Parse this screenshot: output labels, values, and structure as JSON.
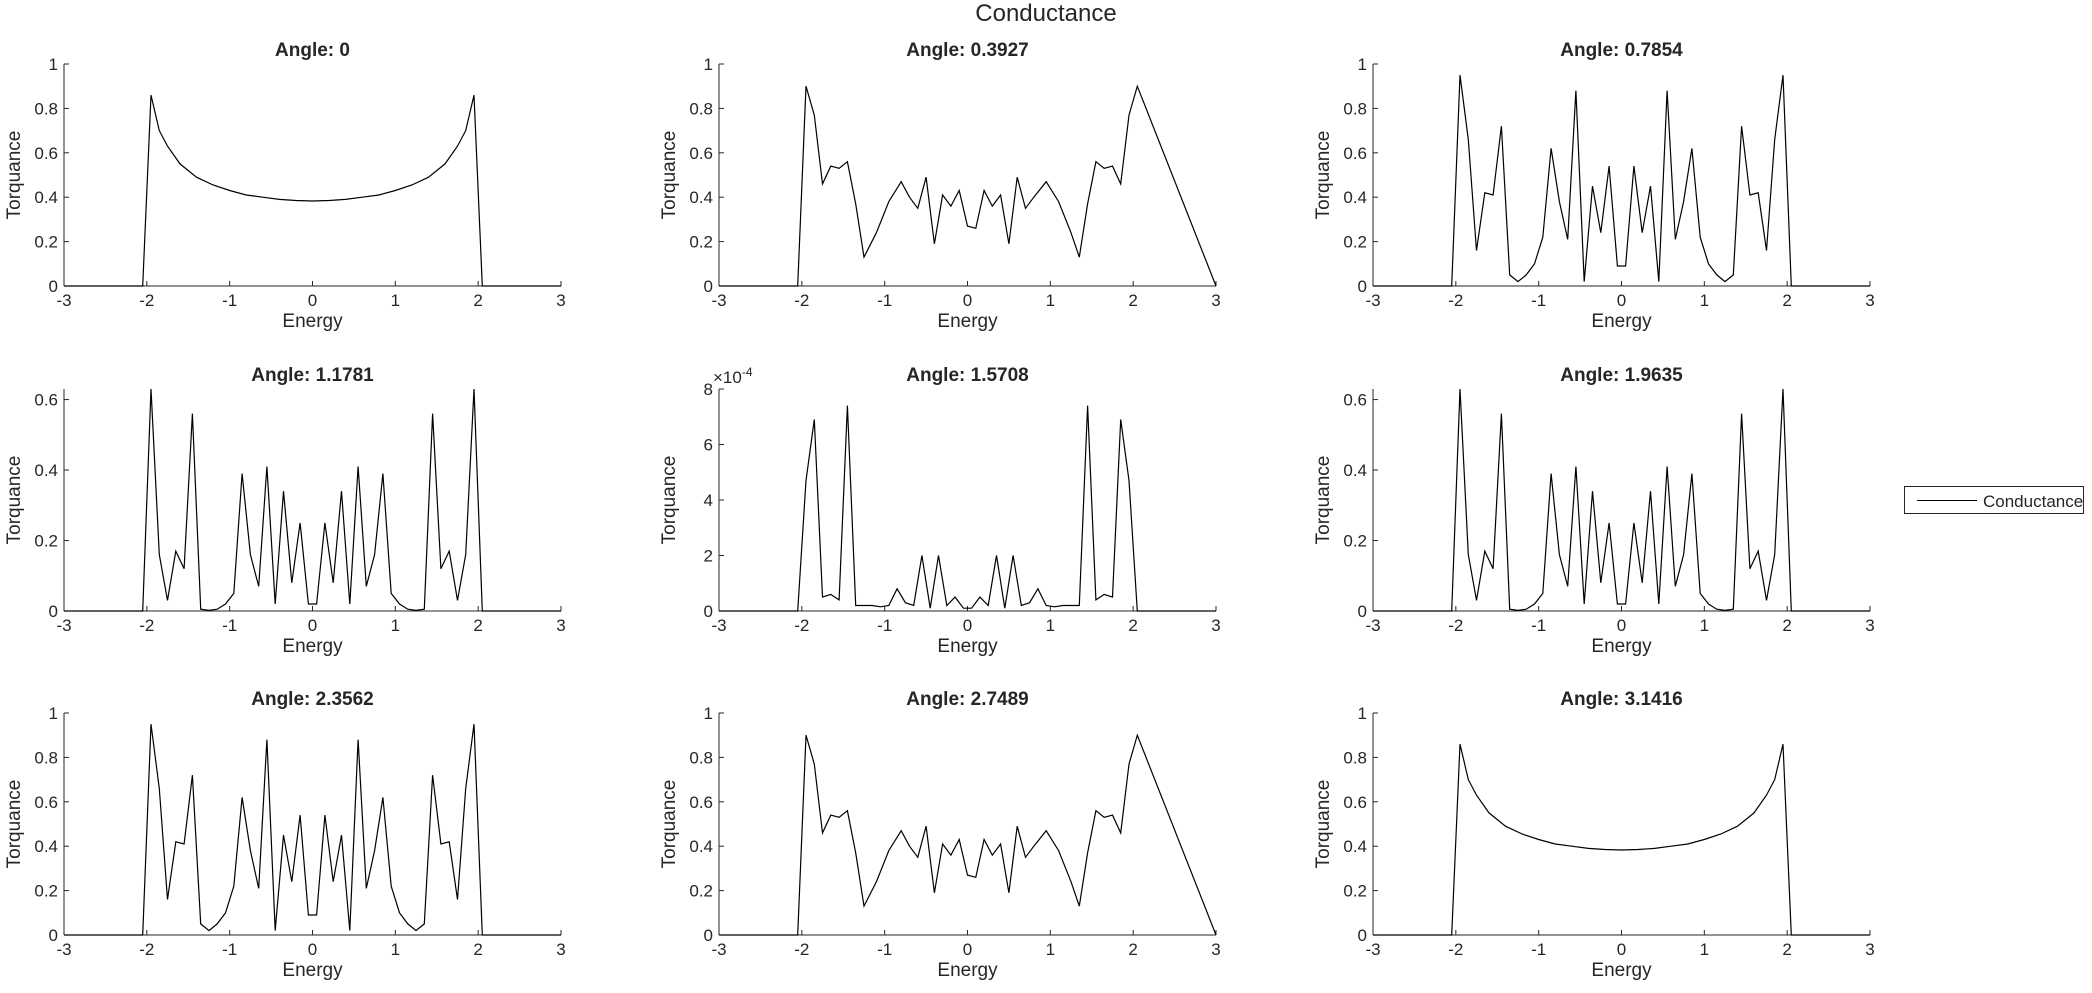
{
  "figure": {
    "title": "Conductance",
    "legend": {
      "entries": [
        "Conductance"
      ],
      "placement": "east-outside"
    },
    "line_color": "#000000"
  },
  "chart_data": [
    {
      "type": "line",
      "title": "Angle: 0",
      "xlabel": "Energy",
      "ylabel": "Torquance",
      "xlim": [
        -3,
        3
      ],
      "ylim": [
        0,
        1
      ],
      "xticks": [
        "-3",
        "-2",
        "-1",
        "0",
        "1",
        "2",
        "3"
      ],
      "yticks": [
        "0",
        "0.2",
        "0.4",
        "0.6",
        "0.8",
        "1"
      ],
      "series": [
        {
          "name": "Conductance",
          "x": [
            -3,
            -2.05,
            -1.95,
            -1.85,
            -1.75,
            -1.6,
            -1.4,
            -1.2,
            -1.0,
            -0.8,
            -0.6,
            -0.4,
            -0.2,
            0,
            0.2,
            0.4,
            0.6,
            0.8,
            1.0,
            1.2,
            1.4,
            1.6,
            1.75,
            1.85,
            1.95,
            2.05,
            3
          ],
          "y": [
            0,
            0,
            0.86,
            0.7,
            0.63,
            0.55,
            0.49,
            0.455,
            0.43,
            0.41,
            0.4,
            0.39,
            0.385,
            0.383,
            0.385,
            0.39,
            0.4,
            0.41,
            0.43,
            0.455,
            0.49,
            0.55,
            0.63,
            0.7,
            0.86,
            0,
            0
          ]
        }
      ]
    },
    {
      "type": "line",
      "title": "Angle: 0.3927",
      "xlabel": "Energy",
      "ylabel": "Torquance",
      "xlim": [
        -3,
        3
      ],
      "ylim": [
        0,
        1
      ],
      "xticks": [
        "-3",
        "-2",
        "-1",
        "0",
        "1",
        "2",
        "3"
      ],
      "yticks": [
        "0",
        "0.2",
        "0.4",
        "0.6",
        "0.8",
        "1"
      ],
      "series": [
        {
          "name": "Conductance",
          "x": [
            -3,
            -2.05,
            -1.95,
            -1.85,
            -1.75,
            -1.65,
            -1.55,
            -1.45,
            -1.35,
            -1.25,
            -1.1,
            -0.95,
            -0.8,
            -0.7,
            -0.6,
            -0.5,
            -0.4,
            -0.3,
            -0.2,
            -0.1,
            0,
            0.1,
            0.2,
            0.3,
            0.4,
            0.5,
            0.6,
            0.7,
            0.8,
            0.95,
            1.1,
            1.25,
            1.35,
            1.45,
            1.55,
            1.65,
            1.75,
            1.85,
            1.95,
            2.05,
            3
          ],
          "y": [
            0,
            0,
            0.9,
            0.77,
            0.46,
            0.54,
            0.53,
            0.56,
            0.37,
            0.13,
            0.24,
            0.38,
            0.47,
            0.4,
            0.35,
            0.49,
            0.19,
            0.41,
            0.36,
            0.43,
            0.27,
            0.26,
            0.43,
            0.36,
            0.41,
            0.19,
            0.49,
            0.35,
            0.4,
            0.47,
            0.38,
            0.24,
            0.13,
            0.37,
            0.56,
            0.53,
            0.54,
            0.46,
            0.77,
            0.9,
            0
          ]
        }
      ]
    },
    {
      "type": "line",
      "title": "Angle: 0.7854",
      "xlabel": "Energy",
      "ylabel": "Torquance",
      "xlim": [
        -3,
        3
      ],
      "ylim": [
        0,
        1
      ],
      "xticks": [
        "-3",
        "-2",
        "-1",
        "0",
        "1",
        "2",
        "3"
      ],
      "yticks": [
        "0",
        "0.2",
        "0.4",
        "0.6",
        "0.8",
        "1"
      ],
      "series": [
        {
          "name": "Conductance",
          "x": [
            -3,
            -2.05,
            -1.95,
            -1.85,
            -1.75,
            -1.65,
            -1.55,
            -1.45,
            -1.35,
            -1.25,
            -1.15,
            -1.05,
            -0.95,
            -0.85,
            -0.75,
            -0.65,
            -0.55,
            -0.45,
            -0.35,
            -0.25,
            -0.15,
            -0.05,
            0.05,
            0.15,
            0.25,
            0.35,
            0.45,
            0.55,
            0.65,
            0.75,
            0.85,
            0.95,
            1.05,
            1.15,
            1.25,
            1.35,
            1.45,
            1.55,
            1.65,
            1.75,
            1.85,
            1.95,
            2.05,
            3
          ],
          "y": [
            0,
            0,
            0.95,
            0.66,
            0.16,
            0.42,
            0.41,
            0.72,
            0.05,
            0.02,
            0.05,
            0.1,
            0.22,
            0.62,
            0.38,
            0.21,
            0.88,
            0.02,
            0.45,
            0.24,
            0.54,
            0.09,
            0.09,
            0.54,
            0.24,
            0.45,
            0.02,
            0.88,
            0.21,
            0.38,
            0.62,
            0.22,
            0.1,
            0.05,
            0.02,
            0.05,
            0.72,
            0.41,
            0.42,
            0.16,
            0.66,
            0.95,
            0,
            0
          ]
        }
      ]
    },
    {
      "type": "line",
      "title": "Angle: 1.1781",
      "xlabel": "Energy",
      "ylabel": "Torquance",
      "xlim": [
        -3,
        3
      ],
      "ylim": [
        0,
        0.63
      ],
      "xticks": [
        "-3",
        "-2",
        "-1",
        "0",
        "1",
        "2",
        "3"
      ],
      "yticks": [
        "0",
        "0.2",
        "0.4",
        "0.6"
      ],
      "series": [
        {
          "name": "Conductance",
          "x": [
            -3,
            -2.05,
            -1.95,
            -1.85,
            -1.75,
            -1.65,
            -1.55,
            -1.45,
            -1.35,
            -1.25,
            -1.15,
            -1.05,
            -0.95,
            -0.85,
            -0.75,
            -0.65,
            -0.55,
            -0.45,
            -0.35,
            -0.25,
            -0.15,
            -0.05,
            0.05,
            0.15,
            0.25,
            0.35,
            0.45,
            0.55,
            0.65,
            0.75,
            0.85,
            0.95,
            1.05,
            1.15,
            1.25,
            1.35,
            1.45,
            1.55,
            1.65,
            1.75,
            1.85,
            1.95,
            2.05,
            3
          ],
          "y": [
            0,
            0,
            0.63,
            0.16,
            0.03,
            0.17,
            0.12,
            0.56,
            0.005,
            0.002,
            0.005,
            0.02,
            0.05,
            0.39,
            0.16,
            0.07,
            0.41,
            0.02,
            0.34,
            0.08,
            0.25,
            0.02,
            0.02,
            0.25,
            0.08,
            0.34,
            0.02,
            0.41,
            0.07,
            0.16,
            0.39,
            0.05,
            0.02,
            0.005,
            0.002,
            0.005,
            0.56,
            0.12,
            0.17,
            0.03,
            0.16,
            0.63,
            0,
            0
          ]
        }
      ]
    },
    {
      "type": "line",
      "title": "Angle: 1.5708",
      "xlabel": "Energy",
      "ylabel": "Torquance",
      "xlim": [
        -3,
        3
      ],
      "ylim": [
        0,
        8
      ],
      "xticks": [
        "-3",
        "-2",
        "-1",
        "0",
        "1",
        "2",
        "3"
      ],
      "yticks": [
        "0",
        "2",
        "4",
        "6",
        "8"
      ],
      "yexponent": "×10^{-4}",
      "yexponent_base": "×10",
      "yexponent_power": "-4",
      "series": [
        {
          "name": "Conductance",
          "x": [
            -3,
            -2.05,
            -1.95,
            -1.85,
            -1.75,
            -1.65,
            -1.55,
            -1.45,
            -1.35,
            -1.25,
            -1.15,
            -1.05,
            -0.95,
            -0.85,
            -0.75,
            -0.65,
            -0.55,
            -0.45,
            -0.35,
            -0.25,
            -0.15,
            -0.05,
            0.05,
            0.15,
            0.25,
            0.35,
            0.45,
            0.55,
            0.65,
            0.75,
            0.85,
            0.95,
            1.05,
            1.15,
            1.25,
            1.35,
            1.45,
            1.55,
            1.65,
            1.75,
            1.85,
            1.95,
            2.05,
            3
          ],
          "y": [
            0,
            0,
            4.7,
            6.9,
            0.5,
            0.6,
            0.4,
            7.4,
            0.2,
            0.2,
            0.2,
            0.15,
            0.2,
            0.8,
            0.3,
            0.2,
            2.0,
            0.1,
            2.0,
            0.2,
            0.5,
            0.1,
            0.1,
            0.5,
            0.2,
            2.0,
            0.1,
            2.0,
            0.2,
            0.3,
            0.8,
            0.2,
            0.15,
            0.2,
            0.2,
            0.2,
            7.4,
            0.4,
            0.6,
            0.5,
            6.9,
            4.7,
            0,
            0
          ]
        }
      ]
    },
    {
      "type": "line",
      "title": "Angle: 1.9635",
      "xlabel": "Energy",
      "ylabel": "Torquance",
      "xlim": [
        -3,
        3
      ],
      "ylim": [
        0,
        0.63
      ],
      "xticks": [
        "-3",
        "-2",
        "-1",
        "0",
        "1",
        "2",
        "3"
      ],
      "yticks": [
        "0",
        "0.2",
        "0.4",
        "0.6"
      ],
      "series": [
        {
          "name": "Conductance",
          "x": [
            -3,
            -2.05,
            -1.95,
            -1.85,
            -1.75,
            -1.65,
            -1.55,
            -1.45,
            -1.35,
            -1.25,
            -1.15,
            -1.05,
            -0.95,
            -0.85,
            -0.75,
            -0.65,
            -0.55,
            -0.45,
            -0.35,
            -0.25,
            -0.15,
            -0.05,
            0.05,
            0.15,
            0.25,
            0.35,
            0.45,
            0.55,
            0.65,
            0.75,
            0.85,
            0.95,
            1.05,
            1.15,
            1.25,
            1.35,
            1.45,
            1.55,
            1.65,
            1.75,
            1.85,
            1.95,
            2.05,
            3
          ],
          "y": [
            0,
            0,
            0.63,
            0.16,
            0.03,
            0.17,
            0.12,
            0.56,
            0.005,
            0.002,
            0.005,
            0.02,
            0.05,
            0.39,
            0.16,
            0.07,
            0.41,
            0.02,
            0.34,
            0.08,
            0.25,
            0.02,
            0.02,
            0.25,
            0.08,
            0.34,
            0.02,
            0.41,
            0.07,
            0.16,
            0.39,
            0.05,
            0.02,
            0.005,
            0.002,
            0.005,
            0.56,
            0.12,
            0.17,
            0.03,
            0.16,
            0.63,
            0,
            0
          ]
        }
      ]
    },
    {
      "type": "line",
      "title": "Angle: 2.3562",
      "xlabel": "Energy",
      "ylabel": "Torquance",
      "xlim": [
        -3,
        3
      ],
      "ylim": [
        0,
        1
      ],
      "xticks": [
        "-3",
        "-2",
        "-1",
        "0",
        "1",
        "2",
        "3"
      ],
      "yticks": [
        "0",
        "0.2",
        "0.4",
        "0.6",
        "0.8",
        "1"
      ],
      "series": [
        {
          "name": "Conductance",
          "x": [
            -3,
            -2.05,
            -1.95,
            -1.85,
            -1.75,
            -1.65,
            -1.55,
            -1.45,
            -1.35,
            -1.25,
            -1.15,
            -1.05,
            -0.95,
            -0.85,
            -0.75,
            -0.65,
            -0.55,
            -0.45,
            -0.35,
            -0.25,
            -0.15,
            -0.05,
            0.05,
            0.15,
            0.25,
            0.35,
            0.45,
            0.55,
            0.65,
            0.75,
            0.85,
            0.95,
            1.05,
            1.15,
            1.25,
            1.35,
            1.45,
            1.55,
            1.65,
            1.75,
            1.85,
            1.95,
            2.05,
            3
          ],
          "y": [
            0,
            0,
            0.95,
            0.66,
            0.16,
            0.42,
            0.41,
            0.72,
            0.05,
            0.02,
            0.05,
            0.1,
            0.22,
            0.62,
            0.38,
            0.21,
            0.88,
            0.02,
            0.45,
            0.24,
            0.54,
            0.09,
            0.09,
            0.54,
            0.24,
            0.45,
            0.02,
            0.88,
            0.21,
            0.38,
            0.62,
            0.22,
            0.1,
            0.05,
            0.02,
            0.05,
            0.72,
            0.41,
            0.42,
            0.16,
            0.66,
            0.95,
            0,
            0
          ]
        }
      ]
    },
    {
      "type": "line",
      "title": "Angle: 2.7489",
      "xlabel": "Energy",
      "ylabel": "Torquance",
      "xlim": [
        -3,
        3
      ],
      "ylim": [
        0,
        1
      ],
      "xticks": [
        "-3",
        "-2",
        "-1",
        "0",
        "1",
        "2",
        "3"
      ],
      "yticks": [
        "0",
        "0.2",
        "0.4",
        "0.6",
        "0.8",
        "1"
      ],
      "series": [
        {
          "name": "Conductance",
          "x": [
            -3,
            -2.05,
            -1.95,
            -1.85,
            -1.75,
            -1.65,
            -1.55,
            -1.45,
            -1.35,
            -1.25,
            -1.1,
            -0.95,
            -0.8,
            -0.7,
            -0.6,
            -0.5,
            -0.4,
            -0.3,
            -0.2,
            -0.1,
            0,
            0.1,
            0.2,
            0.3,
            0.4,
            0.5,
            0.6,
            0.7,
            0.8,
            0.95,
            1.1,
            1.25,
            1.35,
            1.45,
            1.55,
            1.65,
            1.75,
            1.85,
            1.95,
            2.05,
            3
          ],
          "y": [
            0,
            0,
            0.9,
            0.77,
            0.46,
            0.54,
            0.53,
            0.56,
            0.37,
            0.13,
            0.24,
            0.38,
            0.47,
            0.4,
            0.35,
            0.49,
            0.19,
            0.41,
            0.36,
            0.43,
            0.27,
            0.26,
            0.43,
            0.36,
            0.41,
            0.19,
            0.49,
            0.35,
            0.4,
            0.47,
            0.38,
            0.24,
            0.13,
            0.37,
            0.56,
            0.53,
            0.54,
            0.46,
            0.77,
            0.9,
            0
          ]
        }
      ]
    },
    {
      "type": "line",
      "title": "Angle: 3.1416",
      "xlabel": "Energy",
      "ylabel": "Torquance",
      "xlim": [
        -3,
        3
      ],
      "ylim": [
        0,
        1
      ],
      "xticks": [
        "-3",
        "-2",
        "-1",
        "0",
        "1",
        "2",
        "3"
      ],
      "yticks": [
        "0",
        "0.2",
        "0.4",
        "0.6",
        "0.8",
        "1"
      ],
      "series": [
        {
          "name": "Conductance",
          "x": [
            -3,
            -2.05,
            -1.95,
            -1.85,
            -1.75,
            -1.6,
            -1.4,
            -1.2,
            -1.0,
            -0.8,
            -0.6,
            -0.4,
            -0.2,
            0,
            0.2,
            0.4,
            0.6,
            0.8,
            1.0,
            1.2,
            1.4,
            1.6,
            1.75,
            1.85,
            1.95,
            2.05,
            3
          ],
          "y": [
            0,
            0,
            0.86,
            0.7,
            0.63,
            0.55,
            0.49,
            0.455,
            0.43,
            0.41,
            0.4,
            0.39,
            0.385,
            0.383,
            0.385,
            0.39,
            0.4,
            0.41,
            0.43,
            0.455,
            0.49,
            0.55,
            0.63,
            0.7,
            0.86,
            0,
            0
          ]
        }
      ]
    }
  ]
}
